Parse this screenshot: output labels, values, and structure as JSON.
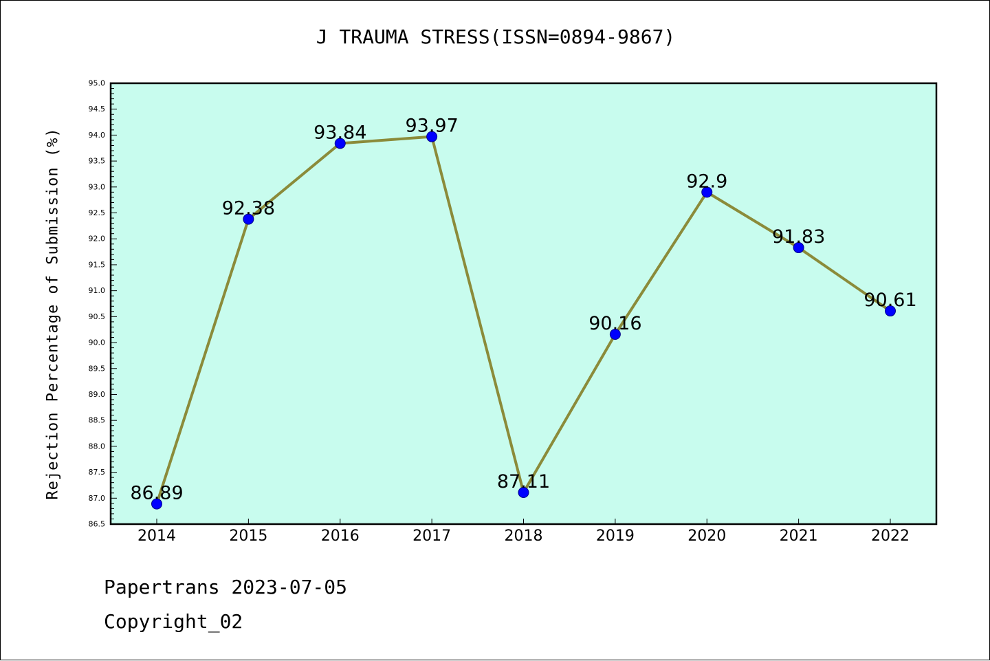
{
  "chart_data": {
    "type": "line",
    "title": "J TRAUMA STRESS(ISSN=0894-9867)",
    "ylabel": "Rejection Percentage of Submission (%)",
    "xlabel": "",
    "x": [
      "2014",
      "2015",
      "2016",
      "2017",
      "2018",
      "2019",
      "2020",
      "2021",
      "2022"
    ],
    "series": [
      {
        "values": [
          86.89,
          92.38,
          93.84,
          93.97,
          87.11,
          90.16,
          92.9,
          91.83,
          90.61
        ],
        "labels": [
          "86.89",
          "92.38",
          "93.84",
          "93.97",
          "87.11",
          "90.16",
          "92.9",
          "91.83",
          "90.61"
        ]
      }
    ],
    "ylim": [
      86.5,
      95.0
    ],
    "yticks": [
      "86.5",
      "87.0",
      "87.5",
      "88.0",
      "88.5",
      "89.0",
      "89.5",
      "90.0",
      "90.5",
      "91.0",
      "91.5",
      "92.0",
      "92.5",
      "93.0",
      "93.5",
      "94.0",
      "94.5",
      "95.0"
    ],
    "grid": false,
    "colors": {
      "plot_background": "#c8fcee",
      "line": "#8b8b3a",
      "marker": "#0000ff"
    }
  },
  "footer": {
    "line1": "Papertrans 2023-07-05",
    "line2": "Copyright_02"
  }
}
